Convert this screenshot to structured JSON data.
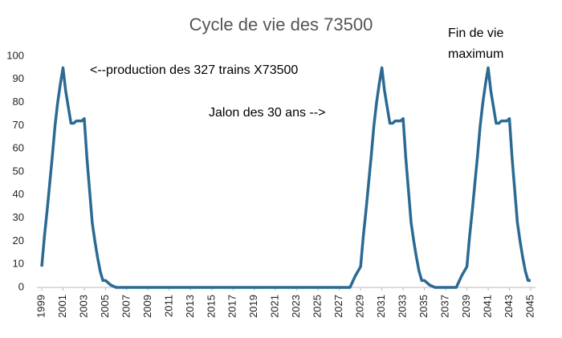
{
  "chart_data": {
    "type": "line",
    "title": "Cycle de vie des 73500",
    "annotations": [
      "<--production des 327 trains X73500",
      "Jalon des 30 ans -->",
      "Fin de vie",
      "maximum"
    ],
    "xlim": [
      1999,
      2045
    ],
    "xticks": [
      1999,
      2001,
      2003,
      2005,
      2007,
      2009,
      2011,
      2013,
      2015,
      2017,
      2019,
      2021,
      2023,
      2025,
      2027,
      2029,
      2031,
      2033,
      2035,
      2037,
      2039,
      2041,
      2043,
      2045
    ],
    "ylim": [
      0,
      100
    ],
    "yticks": [
      0,
      10,
      20,
      30,
      40,
      50,
      60,
      70,
      80,
      90,
      100
    ],
    "grid": false,
    "x": [
      1999,
      1999.25,
      1999.5,
      1999.75,
      2000,
      2000.25,
      2000.5,
      2000.75,
      2001,
      2001.25,
      2001.5,
      2001.75,
      2002,
      2002.25,
      2002.5,
      2002.75,
      2003,
      2003.25,
      2003.5,
      2003.75,
      2004,
      2004.25,
      2004.5,
      2004.75,
      2005,
      2005.5,
      2006,
      2028,
      2028.5,
      2029,
      2029.25,
      2029.5,
      2029.75,
      2030,
      2030.25,
      2030.5,
      2030.75,
      2031,
      2031.25,
      2031.5,
      2031.75,
      2032,
      2032.25,
      2032.5,
      2032.75,
      2033,
      2033.25,
      2033.5,
      2033.75,
      2034,
      2034.25,
      2034.5,
      2034.75,
      2035,
      2035.5,
      2036,
      2038,
      2038.5,
      2039,
      2039.25,
      2039.5,
      2039.75,
      2040,
      2040.25,
      2040.5,
      2040.75,
      2041,
      2041.25,
      2041.5,
      2041.75,
      2042,
      2042.25,
      2042.5,
      2042.75,
      2043,
      2043.25,
      2043.5,
      2043.75,
      2044,
      2044.25,
      2044.5,
      2044.75,
      2045
    ],
    "series": [
      {
        "name": "73500",
        "color": "#2b6a93",
        "values": [
          9,
          22,
          33,
          45,
          57,
          70,
          80,
          88,
          95,
          85,
          78,
          71,
          71,
          72,
          72,
          72,
          73,
          56,
          42,
          28,
          20,
          13,
          7,
          3,
          3,
          1,
          0,
          0,
          5,
          9,
          22,
          33,
          45,
          57,
          70,
          80,
          88,
          95,
          85,
          78,
          71,
          71,
          72,
          72,
          72,
          73,
          56,
          42,
          28,
          20,
          13,
          7,
          3,
          3,
          1,
          0,
          0,
          5,
          9,
          22,
          33,
          45,
          57,
          70,
          80,
          88,
          95,
          85,
          78,
          71,
          71,
          72,
          72,
          72,
          73,
          56,
          42,
          28,
          20,
          13,
          7,
          3,
          3
        ]
      }
    ]
  }
}
